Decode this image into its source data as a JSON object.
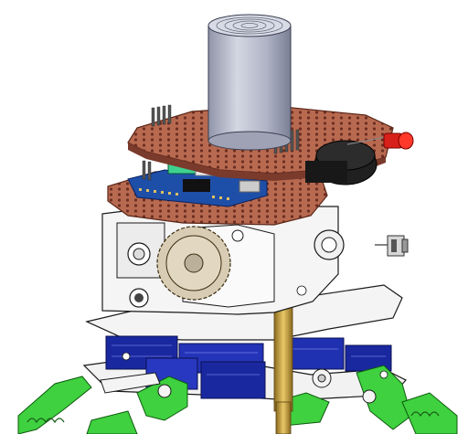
{
  "scene": {
    "subject": "robot-assembly-cad-render",
    "colors": {
      "background": "#ffffff",
      "pcb_copper": "#b5684f",
      "pcb_dark": "#7a3a2c",
      "cylinder": "#b8bccc",
      "arduino_blue": "#1e4fa8",
      "servo_blue": "#1a28a0",
      "standoff_brass": "#c8a440",
      "white_plastic": "#f2f2f2",
      "outline": "#1a1a1a",
      "green_parts": "#3fd13f",
      "led_red": "#d8201a",
      "buzzer_black": "#202020",
      "header_pins": "#555555"
    },
    "icons": [
      "ultrasonic-sensor-icon",
      "red-led-icon",
      "buzzer-icon",
      "toggle-switch-icon",
      "gear-icon"
    ]
  }
}
